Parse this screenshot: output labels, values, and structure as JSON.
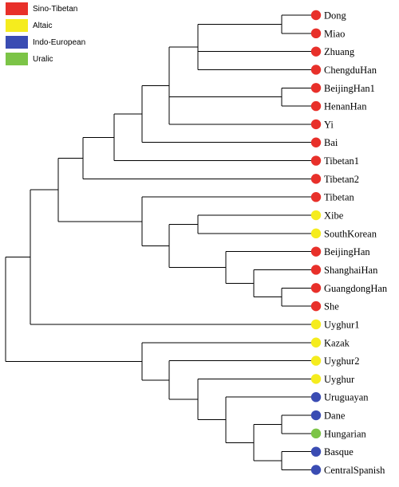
{
  "colors": {
    "sino_tibetan": "#e8302a",
    "altaic": "#f5ec1e",
    "indo_european": "#3a4cb3",
    "uralic": "#7cc447"
  },
  "legend": [
    {
      "label": "Sino-Tibetan",
      "color": "#e8302a"
    },
    {
      "label": "Altaic",
      "color": "#f5ec1e"
    },
    {
      "label": "Indo-European",
      "color": "#3a4cb3"
    },
    {
      "label": "Uralic",
      "color": "#7cc447"
    }
  ],
  "leaves": [
    {
      "label": "Dong",
      "group": "sino_tibetan"
    },
    {
      "label": "Miao",
      "group": "sino_tibetan"
    },
    {
      "label": "Zhuang",
      "group": "sino_tibetan"
    },
    {
      "label": "ChengduHan",
      "group": "sino_tibetan"
    },
    {
      "label": "BeijingHan1",
      "group": "sino_tibetan"
    },
    {
      "label": "HenanHan",
      "group": "sino_tibetan"
    },
    {
      "label": "Yi",
      "group": "sino_tibetan"
    },
    {
      "label": "Bai",
      "group": "sino_tibetan"
    },
    {
      "label": "Tibetan1",
      "group": "sino_tibetan"
    },
    {
      "label": "Tibetan2",
      "group": "sino_tibetan"
    },
    {
      "label": "Tibetan",
      "group": "sino_tibetan"
    },
    {
      "label": "Xibe",
      "group": "altaic"
    },
    {
      "label": "SouthKorean",
      "group": "altaic"
    },
    {
      "label": "BeijingHan",
      "group": "sino_tibetan"
    },
    {
      "label": "ShanghaiHan",
      "group": "sino_tibetan"
    },
    {
      "label": "GuangdongHan",
      "group": "sino_tibetan"
    },
    {
      "label": "She",
      "group": "sino_tibetan"
    },
    {
      "label": "Uyghur1",
      "group": "altaic"
    },
    {
      "label": "Kazak",
      "group": "altaic"
    },
    {
      "label": "Uyghur2",
      "group": "altaic"
    },
    {
      "label": "Uyghur",
      "group": "altaic"
    },
    {
      "label": "Uruguayan",
      "group": "indo_european"
    },
    {
      "label": "Dane",
      "group": "indo_european"
    },
    {
      "label": "Hungarian",
      "group": "uralic"
    },
    {
      "label": "Basque",
      "group": "indo_european"
    },
    {
      "label": "CentralSpanish",
      "group": "indo_european"
    }
  ]
}
